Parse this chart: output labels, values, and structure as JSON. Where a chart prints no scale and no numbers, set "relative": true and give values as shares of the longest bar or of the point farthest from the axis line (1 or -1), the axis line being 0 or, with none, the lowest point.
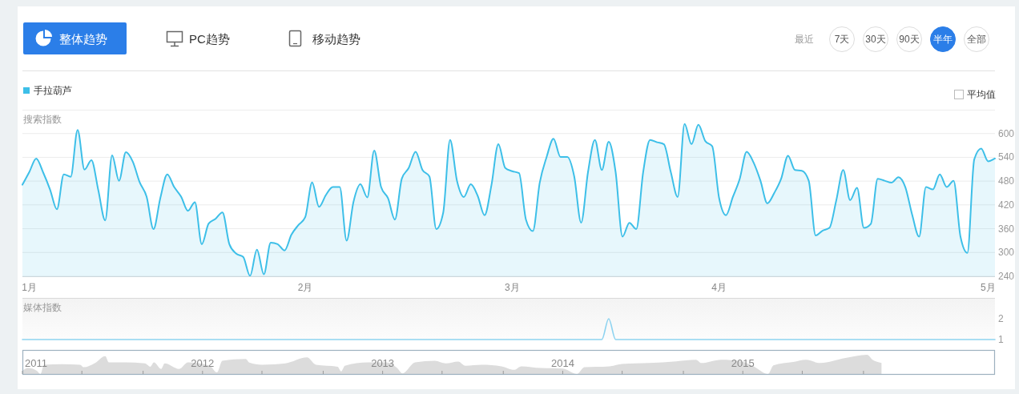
{
  "chart_data": [
    {
      "type": "other",
      "annotations": [
        "整体趋势",
        "PC趋势",
        "移动趋势",
        "最近",
        "7天",
        "30天",
        "90天",
        "半年",
        "全部"
      ]
    },
    {
      "type": "area",
      "ylabel": "搜索指数",
      "legend": "top left",
      "grid": "y",
      "ylim": [
        240,
        660
      ],
      "yticks": [
        240,
        300,
        360,
        420,
        480,
        540,
        600
      ],
      "annotations": [
        "平均值"
      ],
      "categories": [
        null,
        "1月",
        null,
        null,
        null,
        null,
        null,
        null,
        null,
        null,
        null,
        null,
        null,
        null,
        null,
        null,
        null,
        null,
        null,
        null,
        null,
        null,
        null,
        null,
        null,
        null,
        null,
        null,
        null,
        null,
        null,
        null,
        null,
        null,
        null,
        null,
        null,
        null,
        null,
        null,
        null,
        "2月",
        null,
        null,
        null,
        null,
        null,
        null,
        null,
        null,
        null,
        null,
        null,
        null,
        null,
        null,
        null,
        null,
        null,
        null,
        null,
        null,
        null,
        null,
        null,
        null,
        null,
        null,
        null,
        null,
        null,
        "3月",
        null,
        null,
        null,
        null,
        null,
        null,
        null,
        null,
        null,
        null,
        null,
        null,
        null,
        null,
        null,
        null,
        null,
        null,
        null,
        null,
        null,
        null,
        null,
        null,
        null,
        null,
        null,
        null,
        null,
        "4月",
        null,
        null,
        null,
        null,
        null,
        null,
        null,
        null,
        null,
        null,
        null,
        null,
        null,
        null,
        null,
        null,
        null,
        null,
        null,
        null,
        null,
        null,
        null,
        null,
        null,
        null,
        null,
        null,
        null,
        null,
        null,
        null,
        null,
        null,
        null,
        null,
        null,
        null,
        "5月",
        null
      ],
      "series": [
        {
          "name": "手拉葫芦",
          "color": "#3dbfe8",
          "values": [
            471,
            503,
            537,
            502,
            459,
            409,
            497,
            491,
            609,
            509,
            533,
            457,
            381,
            545,
            481,
            553,
            529,
            477,
            441,
            359,
            438,
            497,
            465,
            441,
            405,
            427,
            321,
            373,
            385,
            401,
            321,
            297,
            289,
            241,
            307,
            245,
            325,
            321,
            305,
            345,
            369,
            389,
            477,
            415,
            445,
            465,
            465,
            330,
            428,
            472,
            439,
            557,
            465,
            437,
            383,
            486,
            513,
            554,
            508,
            492,
            359,
            400,
            584,
            481,
            440,
            472,
            443,
            394,
            470,
            573,
            513,
            505,
            500,
            383,
            354,
            476,
            541,
            587,
            541,
            541,
            492,
            375,
            503,
            584,
            508,
            579,
            503,
            340,
            375,
            359,
            503,
            584,
            578,
            573,
            503,
            440,
            624,
            573,
            622,
            581,
            568,
            438,
            394,
            440,
            486,
            554,
            527,
            481,
            424,
            450,
            486,
            544,
            508,
            506,
            481,
            343,
            355,
            362,
            432,
            508,
            432,
            463,
            362,
            372,
            486,
            481,
            476,
            490,
            465,
            395,
            340,
            465,
            459,
            497,
            465,
            481,
            340,
            299,
            535,
            562,
            530,
            537
          ]
        }
      ]
    },
    {
      "type": "line",
      "ylabel": "媒体指数",
      "ylim": [
        1,
        3
      ],
      "yticks": [
        1,
        2
      ],
      "tick_labels": "y",
      "categories": [
        null,
        null,
        null,
        null,
        null,
        null,
        null,
        null,
        null,
        null,
        null,
        null,
        null,
        null,
        null,
        null,
        null,
        null,
        null,
        null,
        null,
        null,
        null,
        null,
        null,
        null,
        null,
        null,
        null,
        null,
        null,
        null,
        null,
        null,
        null,
        null,
        null,
        null,
        null,
        null,
        null,
        null,
        null,
        null,
        null,
        null,
        null,
        null,
        null,
        null,
        null,
        null,
        null,
        null,
        null,
        null,
        null,
        null,
        null,
        null,
        null,
        null,
        null,
        null,
        null,
        null,
        null,
        null,
        null,
        null,
        null,
        null,
        null,
        null,
        null,
        null,
        null,
        null,
        null,
        null,
        null,
        null,
        null,
        null,
        null,
        null,
        null,
        null,
        null,
        null,
        null,
        null,
        null,
        null,
        null,
        null,
        null,
        null,
        null,
        null,
        null,
        null,
        null,
        null,
        null,
        null,
        null,
        null,
        null,
        null,
        null,
        null,
        null,
        null,
        null,
        null,
        null,
        null,
        null,
        null,
        null,
        null,
        null,
        null,
        null,
        null,
        null,
        null,
        null,
        null,
        null,
        null,
        null,
        null,
        null,
        null,
        null,
        null,
        null,
        null,
        null,
        null
      ],
      "series": [
        {
          "color": "#8dd3f0",
          "values": [
            1,
            1,
            1,
            1,
            1,
            1,
            1,
            1,
            1,
            1,
            1,
            1,
            1,
            1,
            1,
            1,
            1,
            1,
            1,
            1,
            1,
            1,
            1,
            1,
            1,
            1,
            1,
            1,
            1,
            1,
            1,
            1,
            1,
            1,
            1,
            1,
            1,
            1,
            1,
            1,
            1,
            1,
            1,
            1,
            1,
            1,
            1,
            1,
            1,
            1,
            1,
            1,
            1,
            1,
            1,
            1,
            1,
            1,
            1,
            1,
            1,
            1,
            1,
            1,
            1,
            1,
            1,
            1,
            1,
            1,
            1,
            1,
            1,
            1,
            1,
            1,
            1,
            1,
            1,
            1,
            1,
            1,
            1,
            1,
            1,
            2,
            1,
            1,
            1,
            1,
            1,
            1,
            1,
            1,
            1,
            1,
            1,
            1,
            1,
            1,
            1,
            1,
            1,
            1,
            1,
            1,
            1,
            1,
            1,
            1,
            1,
            1,
            1,
            1,
            1,
            1,
            1,
            1,
            1,
            1,
            1,
            1,
            1,
            1,
            1,
            1,
            1,
            1,
            1,
            1,
            1,
            1,
            1,
            1,
            1,
            1,
            1,
            1,
            1,
            1,
            1,
            1
          ]
        }
      ]
    },
    {
      "type": "area",
      "relative": true,
      "xlim": [
        2011,
        2016.4
      ],
      "xticks": [
        2011,
        {
          "value": 2011.33,
          "label": null
        },
        {
          "value": 2011.67,
          "label": null
        },
        2012,
        {
          "value": 2012.33,
          "label": null
        },
        {
          "value": 2012.67,
          "label": null
        },
        2013,
        {
          "value": 2013.33,
          "label": null
        },
        {
          "value": 2013.67,
          "label": null
        },
        2014,
        {
          "value": 2014.33,
          "label": null
        },
        {
          "value": 2014.67,
          "label": null
        },
        2015,
        {
          "value": 2015.33,
          "label": null
        },
        {
          "value": 2015.67,
          "label": null
        }
      ],
      "x": [
        2011.0,
        2011.03,
        2011.08,
        2011.1,
        2011.12,
        2011.22,
        2011.32,
        2011.34,
        2011.4,
        2011.46,
        2011.48,
        2011.57,
        2011.68,
        2011.71,
        2011.73,
        2011.77,
        2011.79,
        2011.87,
        2011.92,
        2012.04,
        2012.08,
        2012.11,
        2012.24,
        2012.26,
        2012.33,
        2012.46,
        2012.58,
        2012.63,
        2012.75,
        2012.77,
        2012.79,
        2012.92,
        2013.02,
        2013.08,
        2013.11,
        2013.18,
        2013.29,
        2013.35,
        2013.42,
        2013.46,
        2013.55,
        2013.66,
        2013.73,
        2013.77,
        2013.88,
        2014.0,
        2014.08,
        2014.12,
        2014.26,
        2014.33,
        2014.48,
        2014.63,
        2014.74,
        2014.77,
        2014.88,
        2014.99,
        2015.06,
        2015.14,
        2015.17,
        2015.28,
        2015.35,
        2015.43,
        2015.57,
        2015.69,
        2015.72,
        2015.77
      ],
      "series": [
        {
          "color": "#dcdcdc",
          "values": [
            0.17,
            0.31,
            0.17,
            0,
            0.48,
            0.51,
            0.48,
            0.35,
            0.55,
            0.93,
            0.6,
            0.6,
            0.55,
            0.38,
            0.6,
            0.26,
            0.55,
            0.26,
            0.6,
            0.43,
            0.08,
            0.69,
            0.78,
            0.59,
            0.48,
            0.55,
            0.86,
            0.48,
            0.38,
            0.14,
            0.43,
            0.6,
            0.6,
            0.31,
            0.03,
            0.6,
            0.69,
            0.55,
            0.65,
            0.43,
            0.48,
            0.4,
            0.22,
            0.4,
            0.31,
            0.28,
            0,
            0.35,
            0.4,
            0.52,
            0.57,
            0.66,
            0.74,
            0.57,
            0.74,
            0.66,
            0.4,
            0,
            0.45,
            0.62,
            0.74,
            0.57,
            0.83,
            1,
            0.74,
            0.57
          ]
        }
      ]
    }
  ]
}
